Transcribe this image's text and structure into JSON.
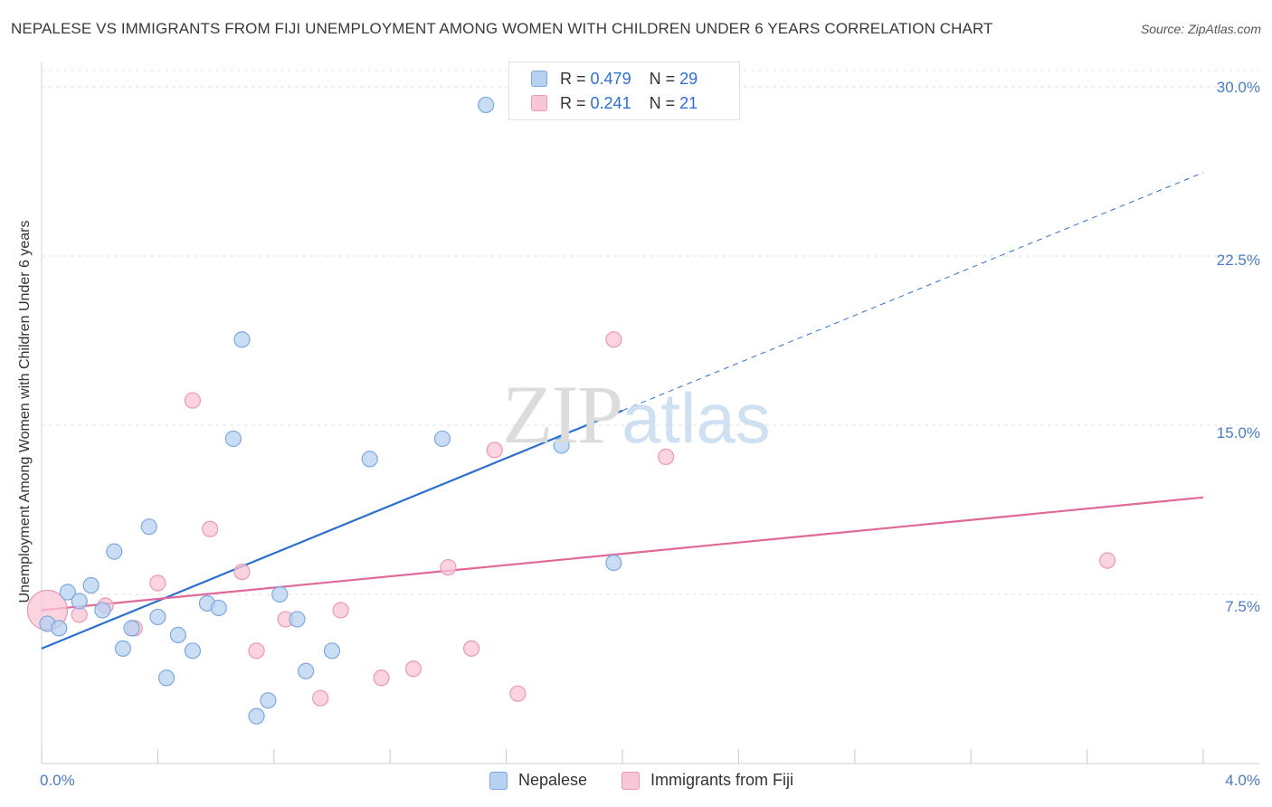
{
  "title": "NEPALESE VS IMMIGRANTS FROM FIJI UNEMPLOYMENT AMONG WOMEN WITH CHILDREN UNDER 6 YEARS CORRELATION CHART",
  "source": "Source: ZipAtlas.com",
  "watermark": {
    "zip": "ZIP",
    "atlas": "atlas"
  },
  "legend_top": {
    "rows": [
      {
        "r_label": "R =",
        "r_value": "0.479",
        "n_label": "N =",
        "n_value": "29",
        "color": "#a8c8ef"
      },
      {
        "r_label": "R =",
        "r_value": "0.241",
        "n_label": "N =",
        "n_value": "21",
        "color": "#f7b9cc"
      }
    ]
  },
  "legend_bottom": {
    "series_a": "Nepalese",
    "series_b": "Immigrants from Fiji"
  },
  "colors": {
    "nepalese_fill": "#b7d1f2",
    "nepalese_stroke": "#7ea8df",
    "nepalese_line": "#2c6fcf",
    "fiji_fill": "#f9c6d5",
    "fiji_stroke": "#ea98b3",
    "fiji_line": "#e0689a",
    "grid": "#e3e3e3",
    "tick_text": "#4a7cc4"
  },
  "chart_data": {
    "type": "scatter",
    "title": "NEPALESE VS IMMIGRANTS FROM FIJI UNEMPLOYMENT AMONG WOMEN WITH CHILDREN UNDER 6 YEARS CORRELATION CHART",
    "xlabel": "",
    "ylabel": "Unemployment Among Women with Children Under 6 years",
    "xlim": [
      0,
      4.0
    ],
    "ylim": [
      0,
      30.0
    ],
    "x_ticks": [
      "0.0%",
      "4.0%"
    ],
    "y_ticks": [
      {
        "value": 7.5,
        "label": "7.5%"
      },
      {
        "value": 15.0,
        "label": "15.0%"
      },
      {
        "value": 22.5,
        "label": "22.5%"
      },
      {
        "value": 30.0,
        "label": "30.0%"
      }
    ],
    "grid": true,
    "legend_position": "top-center",
    "series": [
      {
        "name": "Nepalese",
        "r": 0.479,
        "n": 29,
        "points": [
          [
            0.02,
            6.2
          ],
          [
            0.06,
            6.0
          ],
          [
            0.09,
            7.6
          ],
          [
            0.13,
            7.2
          ],
          [
            0.17,
            7.9
          ],
          [
            0.21,
            6.8
          ],
          [
            0.25,
            9.4
          ],
          [
            0.28,
            5.1
          ],
          [
            0.31,
            6.0
          ],
          [
            0.37,
            10.5
          ],
          [
            0.4,
            6.5
          ],
          [
            0.43,
            3.8
          ],
          [
            0.47,
            5.7
          ],
          [
            0.52,
            5.0
          ],
          [
            0.57,
            7.1
          ],
          [
            0.61,
            6.9
          ],
          [
            0.66,
            14.4
          ],
          [
            0.69,
            18.8
          ],
          [
            0.74,
            2.1
          ],
          [
            0.78,
            2.8
          ],
          [
            0.82,
            7.5
          ],
          [
            0.88,
            6.4
          ],
          [
            0.91,
            4.1
          ],
          [
            1.0,
            5.0
          ],
          [
            1.13,
            13.5
          ],
          [
            1.38,
            14.4
          ],
          [
            1.53,
            29.2
          ],
          [
            1.79,
            14.1
          ],
          [
            1.97,
            8.9
          ]
        ],
        "trend": {
          "x0": 0.0,
          "y0": 5.1,
          "x1": 2.0,
          "y1": 15.65,
          "dash_to_x": 4.0,
          "dash_to_y": 26.2
        }
      },
      {
        "name": "Immigrants from Fiji",
        "r": 0.241,
        "n": 21,
        "points": [
          [
            0.02,
            6.8
          ],
          [
            0.13,
            6.6
          ],
          [
            0.22,
            7.0
          ],
          [
            0.32,
            6.0
          ],
          [
            0.4,
            8.0
          ],
          [
            0.52,
            16.1
          ],
          [
            0.58,
            10.4
          ],
          [
            0.69,
            8.5
          ],
          [
            0.74,
            5.0
          ],
          [
            0.84,
            6.4
          ],
          [
            0.96,
            2.9
          ],
          [
            1.03,
            6.8
          ],
          [
            1.17,
            3.8
          ],
          [
            1.28,
            4.2
          ],
          [
            1.4,
            8.7
          ],
          [
            1.48,
            5.1
          ],
          [
            1.56,
            13.9
          ],
          [
            1.64,
            3.1
          ],
          [
            1.97,
            18.8
          ],
          [
            2.15,
            13.6
          ],
          [
            3.67,
            9.0
          ]
        ],
        "trend": {
          "x0": 0.0,
          "y0": 6.8,
          "x1": 4.0,
          "y1": 11.8
        }
      }
    ]
  }
}
